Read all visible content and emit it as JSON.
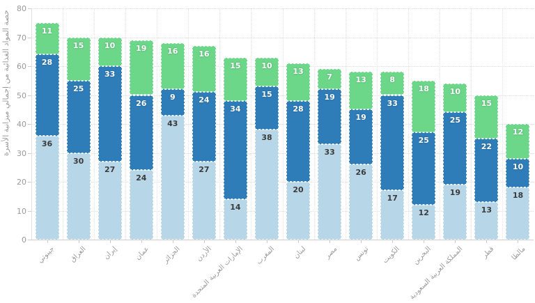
{
  "chart_data": {
    "type": "bar",
    "variant": "stacked-column",
    "title": "",
    "ylabel": "حصة المواد الغذائية من إجمالي ميزانية الأسرة",
    "xlabel": "",
    "ylim": [
      0,
      80
    ],
    "yticks": [
      0,
      10,
      20,
      30,
      40,
      50,
      60,
      70,
      80
    ],
    "grid": true,
    "legend": false,
    "categories": [
      "جيبوتي",
      "العراق",
      "إيران",
      "عمان",
      "الجزائر",
      "الأردن",
      "الإمارات العربية المتحدة",
      "المغرب",
      "لبنان",
      "مصر",
      "تونس",
      "الكويت",
      "البحرين",
      "المملكة العربية السعودية",
      "قطر",
      "مالطا"
    ],
    "series": [
      {
        "name": "segment-bottom-light-blue",
        "color": "#b7d7e8",
        "label_style": "on-light",
        "values": [
          36,
          30,
          27,
          24,
          43,
          27,
          14,
          38,
          20,
          33,
          26,
          17,
          12,
          19,
          13,
          18
        ]
      },
      {
        "name": "segment-middle-dark-blue",
        "color": "#2e7cb8",
        "label_style": "on-dark",
        "values": [
          28,
          25,
          33,
          26,
          9,
          24,
          34,
          15,
          28,
          19,
          19,
          33,
          25,
          25,
          22,
          10
        ]
      },
      {
        "name": "segment-top-green",
        "color": "#6cd689",
        "label_style": "on-dark",
        "values": [
          11,
          15,
          10,
          19,
          16,
          16,
          15,
          10,
          13,
          7,
          13,
          8,
          18,
          10,
          15,
          12
        ]
      }
    ],
    "totals": [
      75,
      70,
      70,
      69,
      68,
      67,
      63,
      63,
      61,
      59,
      58,
      58,
      55,
      54,
      50,
      40
    ],
    "colors": {
      "grid": "#dcdcdc",
      "axis": "#cfcfcf",
      "tick_text": "#999999"
    }
  }
}
